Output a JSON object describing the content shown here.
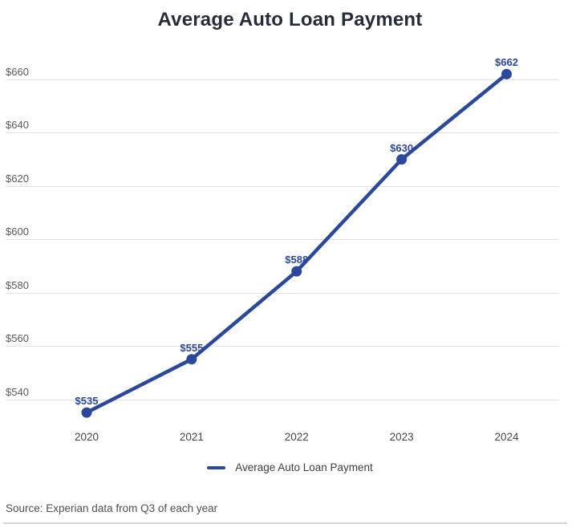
{
  "title": "Average Auto Loan Payment",
  "chart_data": {
    "type": "line",
    "title": "Average Auto Loan Payment",
    "categories": [
      "2020",
      "2021",
      "2022",
      "2023",
      "2024"
    ],
    "series": [
      {
        "name": "Average Auto Loan Payment",
        "values": [
          535,
          555,
          588,
          630,
          662
        ],
        "point_labels": [
          "$535",
          "$555",
          "$588",
          "$630",
          "$662"
        ]
      }
    ],
    "y_ticks": [
      {
        "value": 540,
        "label": "$540"
      },
      {
        "value": 560,
        "label": "$560"
      },
      {
        "value": 580,
        "label": "$580"
      },
      {
        "value": 600,
        "label": "$600"
      },
      {
        "value": 620,
        "label": "$620"
      },
      {
        "value": 640,
        "label": "$640"
      },
      {
        "value": 660,
        "label": "$660"
      }
    ],
    "ylim": [
      530,
      668
    ],
    "grid": true,
    "legend_position": "bottom"
  },
  "legend": {
    "label": "Average Auto Loan Payment"
  },
  "source": {
    "text": "Source: Experian data from Q3 of each year"
  },
  "colors": {
    "accent": "#2b489b",
    "title": "#262c38",
    "grid": "#e2e2e2",
    "y_tick": "#56595d",
    "x_tick": "#43464b",
    "legend_text": "#3c4043",
    "source_text": "#4c4f54",
    "divider": "#d5d5d5",
    "background": "#ffffff"
  }
}
